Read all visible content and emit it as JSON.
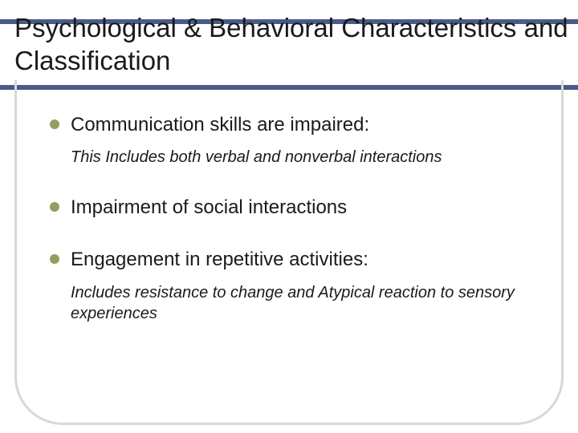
{
  "title": "Psychological & Behavioral Characteristics and Classification",
  "accent_color": "#4a5a8a",
  "bullet_color": "#8fa060",
  "text_color": "#1a1a1a",
  "bullets": [
    {
      "text": "Communication skills are impaired:",
      "sub": "This Includes both verbal and nonverbal interactions"
    },
    {
      "text": "Impairment of social interactions",
      "sub": ""
    },
    {
      "text": "Engagement in repetitive activities:",
      "sub": "Includes resistance to change and Atypical reaction to sensory experiences"
    }
  ],
  "title_fontsize": 33,
  "bullet_fontsize": 24,
  "sub_fontsize": 20
}
